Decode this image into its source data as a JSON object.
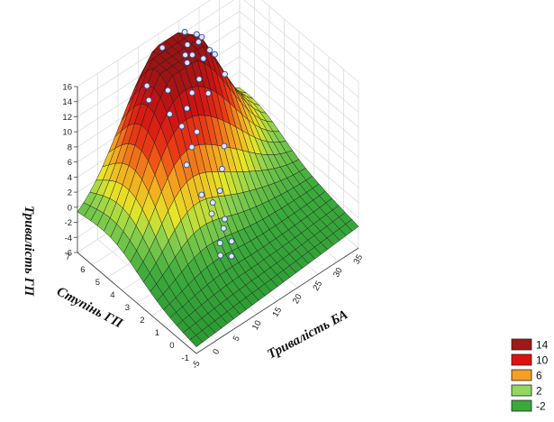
{
  "chart_data": {
    "type": "surface",
    "zlabel": "Тривалість ГП",
    "xlabel": "Тривалість БА",
    "ylabel": "Ступінь ГП",
    "z_ticks": [
      "16",
      "14",
      "12",
      "10",
      "8",
      "6",
      "4",
      "2",
      "0",
      "-2",
      "-4",
      "-6"
    ],
    "x_ticks": [
      "-5",
      "0",
      "5",
      "10",
      "15",
      "20",
      "25",
      "30",
      "35"
    ],
    "y_ticks": [
      "7",
      "6",
      "5",
      "4",
      "3",
      "2",
      "1",
      "0",
      "-1"
    ],
    "zlim": [
      -6,
      16
    ],
    "xlim": [
      -5,
      35
    ],
    "ylim": [
      -1,
      7
    ],
    "legend": [
      {
        "label": "14",
        "color": "#a01818"
      },
      {
        "label": "10",
        "color": "#e01010"
      },
      {
        "label": "6",
        "color": "#f5a020"
      },
      {
        "label": "2",
        "color": "#90d860"
      },
      {
        "label": "-2",
        "color": "#3aa83a"
      }
    ],
    "legend_position": "bottom-right",
    "scatter_points_note": ""
  }
}
